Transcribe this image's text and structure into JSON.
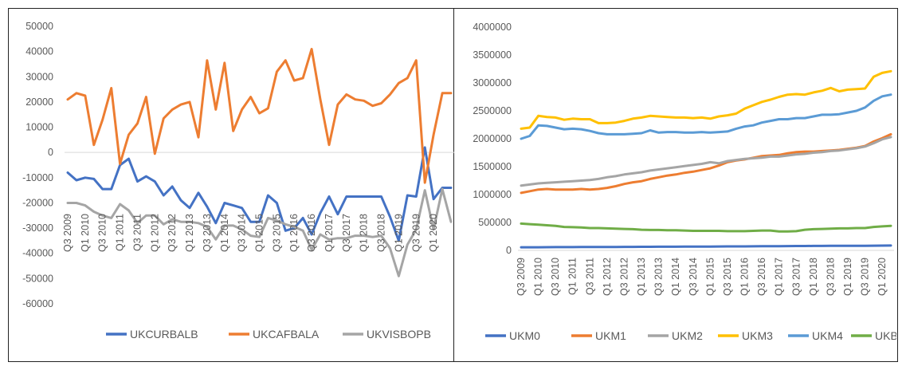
{
  "chart_data": [
    {
      "type": "line",
      "title": "",
      "xlabel": "",
      "ylabel": "",
      "ylim": [
        -60000,
        50000
      ],
      "yticks": [
        50000,
        40000,
        30000,
        20000,
        10000,
        0,
        -10000,
        -20000,
        -30000,
        -40000,
        -50000,
        -60000
      ],
      "ytick_labels": [
        "50000",
        "40000",
        "30000",
        "20000",
        "10000",
        "0",
        "-10000",
        "-20000",
        "-30000",
        "-40000",
        "-50000",
        "-60000"
      ],
      "xtick_labels": [
        "Q3 2009",
        "Q1 2010",
        "Q3 2010",
        "Q1 2011",
        "Q3 2011",
        "Q1 2012",
        "Q3 2012",
        "Q1 2013",
        "Q3 2013",
        "Q1 2014",
        "Q3 2014",
        "Q1 2015",
        "Q3 2015",
        "Q1 2016",
        "Q3 2016",
        "Q1 2017",
        "Q3 2017",
        "Q1 2018",
        "Q3 2018",
        "Q1 2019",
        "Q3 2019",
        "Q1 2020"
      ],
      "xtick_every": 2,
      "grid": false,
      "legend": "bottom",
      "series": [
        {
          "name": "UKCURBALB",
          "color": "#4472C4",
          "values": [
            -8000,
            -11000,
            -10000,
            -10500,
            -14500,
            -14500,
            -5000,
            -2500,
            -11500,
            -9500,
            -11500,
            -17000,
            -13500,
            -19000,
            -22000,
            -16000,
            -21500,
            -28000,
            -20000,
            -21000,
            -22000,
            -27500,
            -27500,
            -17000,
            -20000,
            -31000,
            -30000,
            -26000,
            -32500,
            -24000,
            -17500,
            -24500,
            -17500,
            -17500,
            -17500,
            -17500,
            -17500,
            -25500,
            -35000,
            -17000,
            -17500,
            2000,
            -18500,
            -14000,
            -14000
          ]
        },
        {
          "name": "UKCAFBALA",
          "color": "#ED7D31",
          "values": [
            21000,
            23500,
            22500,
            3000,
            13000,
            25500,
            -4500,
            7000,
            11500,
            22000,
            -500,
            13500,
            17000,
            19000,
            20000,
            6000,
            36500,
            17000,
            35500,
            8500,
            17000,
            22000,
            15500,
            17500,
            32000,
            36500,
            28500,
            29500,
            41000,
            21000,
            3000,
            19000,
            23000,
            21000,
            20500,
            18500,
            19500,
            23000,
            27500,
            29500,
            36500,
            -12000,
            7000,
            23500,
            23500
          ]
        },
        {
          "name": "UKVISBOPB",
          "color": "#A5A5A5",
          "values": [
            -20000,
            -20000,
            -21000,
            -23500,
            -25000,
            -26000,
            -20500,
            -23000,
            -28000,
            -25000,
            -25000,
            -28500,
            -26500,
            -27500,
            -27500,
            -28000,
            -29500,
            -34500,
            -29000,
            -29000,
            -30500,
            -33000,
            -33500,
            -26000,
            -27000,
            -28500,
            -29500,
            -31000,
            -38500,
            -32500,
            -34500,
            -34000,
            -34000,
            -33000,
            -33000,
            -33500,
            -33000,
            -38000,
            -49000,
            -36500,
            -30500,
            -15000,
            -30500,
            -14500,
            -27500
          ]
        }
      ]
    },
    {
      "type": "line",
      "title": "",
      "xlabel": "",
      "ylabel": "",
      "ylim": [
        0,
        4000000
      ],
      "yticks": [
        4000000,
        3500000,
        3000000,
        2500000,
        2000000,
        1500000,
        1000000,
        500000,
        0
      ],
      "ytick_labels": [
        "4000000",
        "3500000",
        "3000000",
        "2500000",
        "2000000",
        "1500000",
        "1000000",
        "500000",
        "0"
      ],
      "xtick_labels": [
        "Q3 2009",
        "Q1 2010",
        "Q3 2010",
        "Q1 2011",
        "Q3 2011",
        "Q1 2012",
        "Q3 2012",
        "Q1 2013",
        "Q3 2013",
        "Q1 2014",
        "Q3 2014",
        "Q1 2015",
        "Q3 2015",
        "Q1 2016",
        "Q3 2016",
        "Q1 2017",
        "Q3 2017",
        "Q1 2018",
        "Q3 2018",
        "Q1 2019",
        "Q3 2019",
        "Q1 2020"
      ],
      "xtick_every": 2,
      "grid": false,
      "legend": "bottom",
      "series": [
        {
          "name": "UKM0",
          "color": "#4472C4",
          "values": [
            55000,
            55000,
            56000,
            57000,
            58000,
            59000,
            59000,
            60000,
            60000,
            61000,
            61000,
            62000,
            63000,
            63000,
            64000,
            64000,
            65000,
            66000,
            66000,
            67000,
            68000,
            68000,
            69000,
            70000,
            71000,
            71000,
            72000,
            73000,
            74000,
            75000,
            76000,
            77000,
            78000,
            79000,
            80000,
            80000,
            81000,
            82000,
            82000,
            83000,
            83000,
            84000,
            86000,
            87000
          ]
        },
        {
          "name": "UKM1",
          "color": "#ED7D31",
          "values": [
            1030000,
            1060000,
            1090000,
            1100000,
            1090000,
            1090000,
            1090000,
            1100000,
            1090000,
            1100000,
            1120000,
            1150000,
            1190000,
            1220000,
            1240000,
            1280000,
            1310000,
            1340000,
            1360000,
            1390000,
            1410000,
            1440000,
            1470000,
            1520000,
            1580000,
            1610000,
            1630000,
            1660000,
            1690000,
            1700000,
            1710000,
            1740000,
            1760000,
            1770000,
            1770000,
            1780000,
            1790000,
            1800000,
            1820000,
            1840000,
            1870000,
            1950000,
            2010000,
            2080000
          ]
        },
        {
          "name": "UKM2",
          "color": "#A5A5A5",
          "values": [
            1160000,
            1180000,
            1200000,
            1210000,
            1220000,
            1230000,
            1240000,
            1250000,
            1260000,
            1280000,
            1310000,
            1330000,
            1360000,
            1380000,
            1400000,
            1430000,
            1450000,
            1470000,
            1490000,
            1510000,
            1530000,
            1550000,
            1580000,
            1560000,
            1600000,
            1620000,
            1640000,
            1650000,
            1660000,
            1680000,
            1680000,
            1700000,
            1720000,
            1730000,
            1750000,
            1760000,
            1780000,
            1790000,
            1810000,
            1830000,
            1860000,
            1920000,
            1990000,
            2030000
          ]
        },
        {
          "name": "UKM3",
          "color": "#FFC000",
          "values": [
            2180000,
            2200000,
            2410000,
            2390000,
            2380000,
            2340000,
            2360000,
            2350000,
            2350000,
            2280000,
            2280000,
            2290000,
            2320000,
            2360000,
            2380000,
            2410000,
            2400000,
            2390000,
            2380000,
            2380000,
            2370000,
            2380000,
            2360000,
            2400000,
            2420000,
            2450000,
            2540000,
            2600000,
            2660000,
            2700000,
            2750000,
            2790000,
            2800000,
            2790000,
            2830000,
            2860000,
            2910000,
            2850000,
            2880000,
            2890000,
            2900000,
            3110000,
            3180000,
            3210000
          ]
        },
        {
          "name": "UKM4",
          "color": "#5B9BD5",
          "values": [
            2000000,
            2050000,
            2240000,
            2230000,
            2200000,
            2170000,
            2180000,
            2170000,
            2140000,
            2100000,
            2080000,
            2080000,
            2080000,
            2090000,
            2100000,
            2150000,
            2110000,
            2120000,
            2120000,
            2110000,
            2110000,
            2120000,
            2110000,
            2120000,
            2130000,
            2180000,
            2220000,
            2240000,
            2290000,
            2320000,
            2350000,
            2350000,
            2370000,
            2370000,
            2400000,
            2430000,
            2430000,
            2440000,
            2470000,
            2500000,
            2560000,
            2680000,
            2760000,
            2790000
          ]
        },
        {
          "name": "UKBANK",
          "legend_label": "UKBANK",
          "color": "#70AD47",
          "values": [
            480000,
            470000,
            460000,
            450000,
            440000,
            420000,
            415000,
            410000,
            400000,
            400000,
            395000,
            390000,
            385000,
            380000,
            370000,
            365000,
            365000,
            360000,
            360000,
            355000,
            350000,
            350000,
            350000,
            350000,
            345000,
            345000,
            345000,
            350000,
            355000,
            355000,
            340000,
            340000,
            345000,
            370000,
            380000,
            385000,
            390000,
            395000,
            395000,
            400000,
            400000,
            420000,
            430000,
            440000
          ]
        }
      ]
    }
  ]
}
